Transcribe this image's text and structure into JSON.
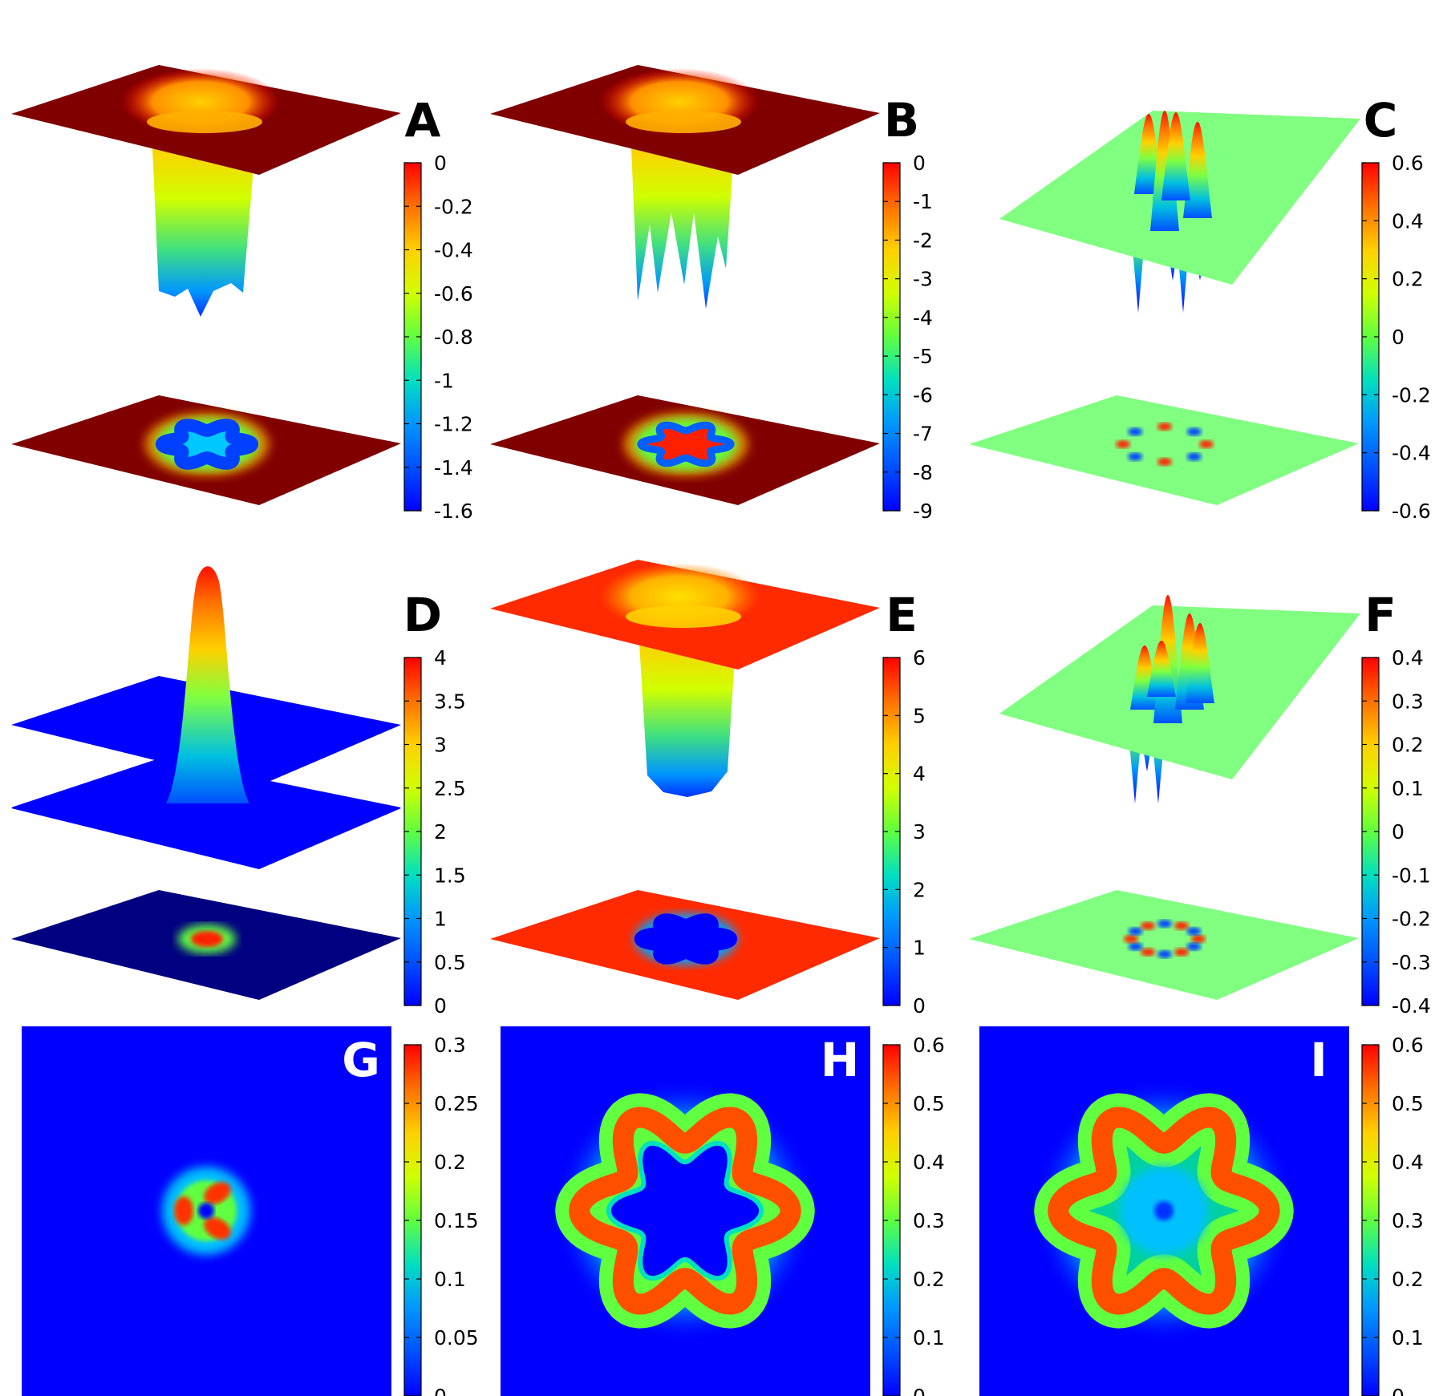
{
  "figure": {
    "panels": [
      {
        "label": "A",
        "kind": "surface",
        "colorbar_ticks": [
          "0",
          "-0.2",
          "-0.4",
          "-0.6",
          "-0.8",
          "-1",
          "-1.2",
          "-1.4",
          "-1.6"
        ]
      },
      {
        "label": "B",
        "kind": "surface",
        "colorbar_ticks": [
          "0",
          "-1",
          "-2",
          "-3",
          "-4",
          "-5",
          "-6",
          "-7",
          "-8",
          "-9"
        ]
      },
      {
        "label": "C",
        "kind": "surface",
        "colorbar_ticks": [
          "0.6",
          "0.4",
          "0.2",
          "0",
          "-0.2",
          "-0.4",
          "-0.6"
        ]
      },
      {
        "label": "D",
        "kind": "surface",
        "colorbar_ticks": [
          "4",
          "3.5",
          "3",
          "2.5",
          "2",
          "1.5",
          "1",
          "0.5",
          "0"
        ]
      },
      {
        "label": "E",
        "kind": "surface",
        "colorbar_ticks": [
          "6",
          "5",
          "4",
          "3",
          "2",
          "1",
          "0"
        ]
      },
      {
        "label": "F",
        "kind": "surface",
        "colorbar_ticks": [
          "0.4",
          "0.3",
          "0.2",
          "0.1",
          "0",
          "-0.1",
          "-0.2",
          "-0.3",
          "-0.4"
        ]
      },
      {
        "label": "G",
        "kind": "heatmap",
        "colorbar_ticks": [
          "0.3",
          "0.25",
          "0.2",
          "0.15",
          "0.1",
          "0.05",
          "0"
        ]
      },
      {
        "label": "H",
        "kind": "heatmap",
        "colorbar_ticks": [
          "0.6",
          "0.5",
          "0.4",
          "0.3",
          "0.2",
          "0.1",
          "0"
        ]
      },
      {
        "label": "I",
        "kind": "heatmap",
        "colorbar_ticks": [
          "0.6",
          "0.5",
          "0.4",
          "0.3",
          "0.2",
          "0.1",
          "0"
        ]
      }
    ]
  },
  "chart_data": [
    {
      "type": "heatmap",
      "panel": "A",
      "view": "3d-surface-with-projection",
      "colorbar_range": [
        -1.6,
        0
      ],
      "colorscale": "jet",
      "baseline_value": 0,
      "feature": "well, minimum -1.6 with 6-fold ring"
    },
    {
      "type": "heatmap",
      "panel": "B",
      "view": "3d-surface-with-projection",
      "colorbar_range": [
        -9,
        0
      ],
      "colorscale": "jet",
      "baseline_value": 0,
      "feature": "well, minimum -9 with 6-fold ring"
    },
    {
      "type": "heatmap",
      "panel": "C",
      "view": "3d-surface-with-projection",
      "colorbar_range": [
        -0.6,
        0.6
      ],
      "colorscale": "jet",
      "baseline_value": 0,
      "feature": "alternating peaks and dips on ring"
    },
    {
      "type": "heatmap",
      "panel": "D",
      "view": "3d-surface-with-projection",
      "colorbar_range": [
        0,
        4
      ],
      "colorscale": "jet",
      "baseline_value": 0,
      "feature": "single central peak, maximum 4"
    },
    {
      "type": "heatmap",
      "panel": "E",
      "view": "3d-surface-with-projection",
      "colorbar_range": [
        0,
        6
      ],
      "colorscale": "jet",
      "baseline_value": 5,
      "feature": "well down to 0, 6-fold star shaped"
    },
    {
      "type": "heatmap",
      "panel": "F",
      "view": "3d-surface-with-projection",
      "colorbar_range": [
        -0.4,
        0.4
      ],
      "colorscale": "jet",
      "baseline_value": 0,
      "feature": "alternating peaks and dips on ring"
    },
    {
      "type": "heatmap",
      "panel": "G",
      "view": "2d",
      "colorbar_range": [
        0,
        0.3
      ],
      "colorscale": "jet",
      "baseline_value": 0,
      "feature": "small 3-lobed ring"
    },
    {
      "type": "heatmap",
      "panel": "H",
      "view": "2d",
      "colorbar_range": [
        0,
        0.6
      ],
      "colorscale": "jet",
      "baseline_value": 0,
      "feature": "6-lobed ring, empty star centre"
    },
    {
      "type": "heatmap",
      "panel": "I",
      "view": "2d",
      "colorbar_range": [
        0,
        0.6
      ],
      "colorscale": "jet",
      "baseline_value": 0,
      "feature": "6-lobed ring, filled centre"
    }
  ],
  "colors": {
    "jet_blue": "#0000ff",
    "jet_red": "#ff0000",
    "jet_green": "#80ff2a",
    "jet_orange": "#ff8000"
  }
}
